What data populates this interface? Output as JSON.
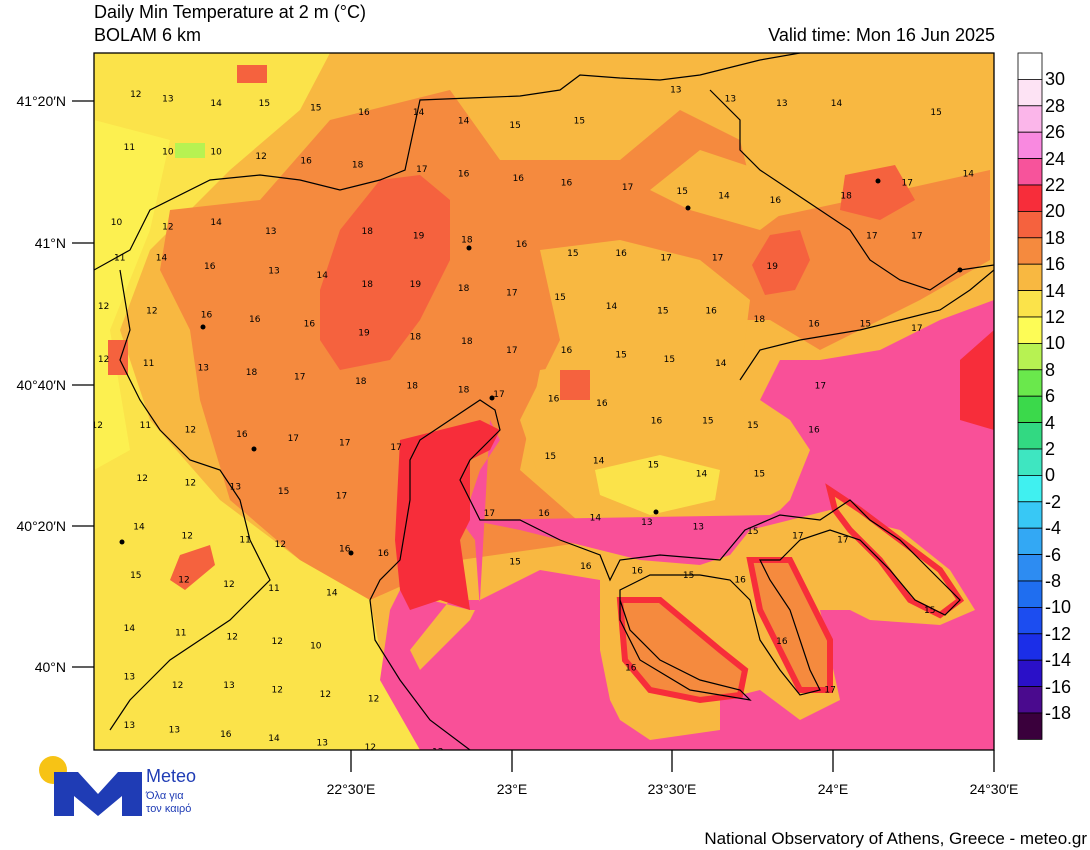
{
  "header": {
    "title": "Daily Min Temperature at 2 m (°C)",
    "model": "BOLAM 6 km",
    "valid_time": "Valid time: Mon 16 Jun 2025"
  },
  "footer": {
    "credit": "National Observatory of Athens, Greece - meteo.gr"
  },
  "logo": {
    "wordmark": "Meteo",
    "tagline_1": "Όλα για",
    "tagline_2": "τον καιρό"
  },
  "axes": {
    "lat_ticks": [
      "41°20′N",
      "41°N",
      "40°40′N",
      "40°20′N",
      "40°N"
    ],
    "lon_ticks": [
      "22°30′E",
      "23°E",
      "23°30′E",
      "24°E",
      "24°30′E"
    ]
  },
  "legend": {
    "levels": [
      {
        "label": "30",
        "color": "#ffffff"
      },
      {
        "label": "28",
        "color": "#fde3f4"
      },
      {
        "label": "26",
        "color": "#fbb6ea"
      },
      {
        "label": "24",
        "color": "#f989e0"
      },
      {
        "label": "22",
        "color": "#f7539b"
      },
      {
        "label": "20",
        "color": "#f72d3a"
      },
      {
        "label": "18",
        "color": "#f5623e"
      },
      {
        "label": "16",
        "color": "#f58a3e"
      },
      {
        "label": "14",
        "color": "#f8b841"
      },
      {
        "label": "12",
        "color": "#fbe34a"
      },
      {
        "label": "10",
        "color": "#fdfc56"
      },
      {
        "label": "8",
        "color": "#b7f252"
      },
      {
        "label": "6",
        "color": "#6ae84c"
      },
      {
        "label": "4",
        "color": "#3bd94b"
      },
      {
        "label": "2",
        "color": "#32d982"
      },
      {
        "label": "0",
        "color": "#3ee6c1"
      },
      {
        "label": "-2",
        "color": "#40f0f0"
      },
      {
        "label": "-4",
        "color": "#38c8f5"
      },
      {
        "label": "-6",
        "color": "#33a8f4"
      },
      {
        "label": "-8",
        "color": "#2d8cf2"
      },
      {
        "label": "-10",
        "color": "#1f6ef0"
      },
      {
        "label": "-12",
        "color": "#1c4df0"
      },
      {
        "label": "-14",
        "color": "#1b2ee8"
      },
      {
        "label": "-16",
        "color": "#2a10c8"
      },
      {
        "label": "-18",
        "color": "#4a0a8e"
      },
      {
        "label": "",
        "color": "#3a003c"
      }
    ]
  },
  "chart_data": {
    "type": "heatmap",
    "title": "Daily Min Temperature at 2 m (°C)",
    "lon_range": [
      21.7,
      24.5
    ],
    "lat_range": [
      39.87,
      41.45
    ],
    "grid_values": [
      {
        "lon": 21.83,
        "lat": 41.35,
        "v": 12
      },
      {
        "lon": 21.93,
        "lat": 41.34,
        "v": 13
      },
      {
        "lon": 22.08,
        "lat": 41.33,
        "v": 14
      },
      {
        "lon": 22.23,
        "lat": 41.33,
        "v": 15
      },
      {
        "lon": 22.39,
        "lat": 41.32,
        "v": 15
      },
      {
        "lon": 22.54,
        "lat": 41.31,
        "v": 16
      },
      {
        "lon": 22.71,
        "lat": 41.31,
        "v": 14
      },
      {
        "lon": 22.85,
        "lat": 41.29,
        "v": 14
      },
      {
        "lon": 23.01,
        "lat": 41.28,
        "v": 15
      },
      {
        "lon": 23.21,
        "lat": 41.29,
        "v": 15
      },
      {
        "lon": 23.51,
        "lat": 41.36,
        "v": 13
      },
      {
        "lon": 23.68,
        "lat": 41.34,
        "v": 13
      },
      {
        "lon": 23.84,
        "lat": 41.33,
        "v": 13
      },
      {
        "lon": 24.01,
        "lat": 41.33,
        "v": 14
      },
      {
        "lon": 24.32,
        "lat": 41.31,
        "v": 15
      },
      {
        "lon": 21.81,
        "lat": 41.23,
        "v": 11
      },
      {
        "lon": 21.93,
        "lat": 41.22,
        "v": 10
      },
      {
        "lon": 22.08,
        "lat": 41.22,
        "v": 10
      },
      {
        "lon": 22.22,
        "lat": 41.21,
        "v": 12
      },
      {
        "lon": 22.36,
        "lat": 41.2,
        "v": 16
      },
      {
        "lon": 22.52,
        "lat": 41.19,
        "v": 18
      },
      {
        "lon": 22.72,
        "lat": 41.18,
        "v": 17
      },
      {
        "lon": 22.85,
        "lat": 41.17,
        "v": 16
      },
      {
        "lon": 23.02,
        "lat": 41.16,
        "v": 16
      },
      {
        "lon": 23.17,
        "lat": 41.15,
        "v": 16
      },
      {
        "lon": 23.36,
        "lat": 41.14,
        "v": 17
      },
      {
        "lon": 23.53,
        "lat": 41.13,
        "v": 15
      },
      {
        "lon": 23.66,
        "lat": 41.12,
        "v": 14
      },
      {
        "lon": 23.82,
        "lat": 41.11,
        "v": 16
      },
      {
        "lon": 24.04,
        "lat": 41.12,
        "v": 18
      },
      {
        "lon": 24.23,
        "lat": 41.15,
        "v": 17
      },
      {
        "lon": 24.42,
        "lat": 41.17,
        "v": 14
      },
      {
        "lon": 21.77,
        "lat": 41.06,
        "v": 10
      },
      {
        "lon": 21.93,
        "lat": 41.05,
        "v": 12
      },
      {
        "lon": 22.08,
        "lat": 41.06,
        "v": 14
      },
      {
        "lon": 22.25,
        "lat": 41.04,
        "v": 13
      },
      {
        "lon": 22.55,
        "lat": 41.04,
        "v": 18
      },
      {
        "lon": 22.71,
        "lat": 41.03,
        "v": 19
      },
      {
        "lon": 22.86,
        "lat": 41.02,
        "v": 18
      },
      {
        "lon": 23.03,
        "lat": 41.01,
        "v": 16
      },
      {
        "lon": 23.19,
        "lat": 40.99,
        "v": 15
      },
      {
        "lon": 23.34,
        "lat": 40.99,
        "v": 16
      },
      {
        "lon": 23.48,
        "lat": 40.98,
        "v": 17
      },
      {
        "lon": 23.64,
        "lat": 40.98,
        "v": 17
      },
      {
        "lon": 23.81,
        "lat": 40.96,
        "v": 19
      },
      {
        "lon": 24.12,
        "lat": 41.03,
        "v": 17
      },
      {
        "lon": 24.26,
        "lat": 41.03,
        "v": 17
      },
      {
        "lon": 21.78,
        "lat": 40.98,
        "v": 11
      },
      {
        "lon": 21.91,
        "lat": 40.98,
        "v": 14
      },
      {
        "lon": 22.06,
        "lat": 40.96,
        "v": 16
      },
      {
        "lon": 22.26,
        "lat": 40.95,
        "v": 13
      },
      {
        "lon": 22.41,
        "lat": 40.94,
        "v": 14
      },
      {
        "lon": 22.55,
        "lat": 40.92,
        "v": 18
      },
      {
        "lon": 22.7,
        "lat": 40.92,
        "v": 19
      },
      {
        "lon": 22.85,
        "lat": 40.91,
        "v": 18
      },
      {
        "lon": 23.0,
        "lat": 40.9,
        "v": 17
      },
      {
        "lon": 23.15,
        "lat": 40.89,
        "v": 15
      },
      {
        "lon": 23.31,
        "lat": 40.87,
        "v": 14
      },
      {
        "lon": 23.47,
        "lat": 40.86,
        "v": 15
      },
      {
        "lon": 23.62,
        "lat": 40.86,
        "v": 16
      },
      {
        "lon": 23.77,
        "lat": 40.84,
        "v": 18
      },
      {
        "lon": 23.94,
        "lat": 40.83,
        "v": 16
      },
      {
        "lon": 24.1,
        "lat": 40.83,
        "v": 15
      },
      {
        "lon": 24.26,
        "lat": 40.82,
        "v": 17
      },
      {
        "lon": 21.73,
        "lat": 40.87,
        "v": 12
      },
      {
        "lon": 21.88,
        "lat": 40.86,
        "v": 12
      },
      {
        "lon": 22.05,
        "lat": 40.85,
        "v": 16
      },
      {
        "lon": 22.2,
        "lat": 40.84,
        "v": 16
      },
      {
        "lon": 22.37,
        "lat": 40.83,
        "v": 16
      },
      {
        "lon": 22.54,
        "lat": 40.81,
        "v": 19
      },
      {
        "lon": 22.7,
        "lat": 40.8,
        "v": 18
      },
      {
        "lon": 22.86,
        "lat": 40.79,
        "v": 18
      },
      {
        "lon": 23.0,
        "lat": 40.77,
        "v": 17
      },
      {
        "lon": 23.17,
        "lat": 40.77,
        "v": 16
      },
      {
        "lon": 23.34,
        "lat": 40.76,
        "v": 15
      },
      {
        "lon": 23.49,
        "lat": 40.75,
        "v": 15
      },
      {
        "lon": 23.65,
        "lat": 40.74,
        "v": 14
      },
      {
        "lon": 23.96,
        "lat": 40.69,
        "v": 17
      },
      {
        "lon": 21.73,
        "lat": 40.75,
        "v": 12
      },
      {
        "lon": 21.87,
        "lat": 40.74,
        "v": 11
      },
      {
        "lon": 22.04,
        "lat": 40.73,
        "v": 13
      },
      {
        "lon": 22.19,
        "lat": 40.72,
        "v": 18
      },
      {
        "lon": 22.34,
        "lat": 40.71,
        "v": 17
      },
      {
        "lon": 22.53,
        "lat": 40.7,
        "v": 18
      },
      {
        "lon": 22.69,
        "lat": 40.69,
        "v": 18
      },
      {
        "lon": 22.85,
        "lat": 40.68,
        "v": 18
      },
      {
        "lon": 22.96,
        "lat": 40.67,
        "v": 17
      },
      {
        "lon": 23.13,
        "lat": 40.66,
        "v": 16
      },
      {
        "lon": 23.28,
        "lat": 40.65,
        "v": 16
      },
      {
        "lon": 21.71,
        "lat": 40.6,
        "v": 12
      },
      {
        "lon": 21.86,
        "lat": 40.6,
        "v": 11
      },
      {
        "lon": 22.0,
        "lat": 40.59,
        "v": 12
      },
      {
        "lon": 22.16,
        "lat": 40.58,
        "v": 16
      },
      {
        "lon": 22.32,
        "lat": 40.57,
        "v": 17
      },
      {
        "lon": 22.48,
        "lat": 40.56,
        "v": 17
      },
      {
        "lon": 22.64,
        "lat": 40.55,
        "v": 17
      },
      {
        "lon": 23.45,
        "lat": 40.61,
        "v": 16
      },
      {
        "lon": 23.61,
        "lat": 40.61,
        "v": 15
      },
      {
        "lon": 23.75,
        "lat": 40.6,
        "v": 15
      },
      {
        "lon": 23.94,
        "lat": 40.59,
        "v": 16
      },
      {
        "lon": 21.85,
        "lat": 40.48,
        "v": 12
      },
      {
        "lon": 22.0,
        "lat": 40.47,
        "v": 12
      },
      {
        "lon": 22.14,
        "lat": 40.46,
        "v": 13
      },
      {
        "lon": 22.29,
        "lat": 40.45,
        "v": 15
      },
      {
        "lon": 22.47,
        "lat": 40.44,
        "v": 17
      },
      {
        "lon": 23.12,
        "lat": 40.53,
        "v": 15
      },
      {
        "lon": 23.27,
        "lat": 40.52,
        "v": 14
      },
      {
        "lon": 23.44,
        "lat": 40.51,
        "v": 15
      },
      {
        "lon": 23.59,
        "lat": 40.49,
        "v": 14
      },
      {
        "lon": 23.77,
        "lat": 40.49,
        "v": 15
      },
      {
        "lon": 21.84,
        "lat": 40.37,
        "v": 14
      },
      {
        "lon": 21.99,
        "lat": 40.35,
        "v": 12
      },
      {
        "lon": 22.17,
        "lat": 40.34,
        "v": 11
      },
      {
        "lon": 22.28,
        "lat": 40.33,
        "v": 12
      },
      {
        "lon": 22.48,
        "lat": 40.32,
        "v": 16
      },
      {
        "lon": 22.6,
        "lat": 40.31,
        "v": 16
      },
      {
        "lon": 22.93,
        "lat": 40.4,
        "v": 17
      },
      {
        "lon": 23.1,
        "lat": 40.4,
        "v": 16
      },
      {
        "lon": 23.26,
        "lat": 40.39,
        "v": 14
      },
      {
        "lon": 23.42,
        "lat": 40.38,
        "v": 13
      },
      {
        "lon": 23.58,
        "lat": 40.37,
        "v": 13
      },
      {
        "lon": 23.75,
        "lat": 40.36,
        "v": 15
      },
      {
        "lon": 23.89,
        "lat": 40.35,
        "v": 17
      },
      {
        "lon": 24.03,
        "lat": 40.34,
        "v": 17
      },
      {
        "lon": 21.83,
        "lat": 40.26,
        "v": 15
      },
      {
        "lon": 21.98,
        "lat": 40.25,
        "v": 12
      },
      {
        "lon": 22.12,
        "lat": 40.24,
        "v": 12
      },
      {
        "lon": 22.26,
        "lat": 40.23,
        "v": 11
      },
      {
        "lon": 22.44,
        "lat": 40.22,
        "v": 14
      },
      {
        "lon": 23.01,
        "lat": 40.29,
        "v": 15
      },
      {
        "lon": 23.23,
        "lat": 40.28,
        "v": 16
      },
      {
        "lon": 23.39,
        "lat": 40.27,
        "v": 16
      },
      {
        "lon": 23.55,
        "lat": 40.26,
        "v": 15
      },
      {
        "lon": 23.71,
        "lat": 40.25,
        "v": 16
      },
      {
        "lon": 24.3,
        "lat": 40.18,
        "v": 15
      },
      {
        "lon": 21.81,
        "lat": 40.14,
        "v": 14
      },
      {
        "lon": 21.97,
        "lat": 40.13,
        "v": 11
      },
      {
        "lon": 22.13,
        "lat": 40.12,
        "v": 12
      },
      {
        "lon": 22.27,
        "lat": 40.11,
        "v": 12
      },
      {
        "lon": 22.39,
        "lat": 40.1,
        "v": 10
      },
      {
        "lon": 23.84,
        "lat": 40.11,
        "v": 16
      },
      {
        "lon": 21.81,
        "lat": 40.03,
        "v": 13
      },
      {
        "lon": 21.96,
        "lat": 40.01,
        "v": 12
      },
      {
        "lon": 22.12,
        "lat": 40.01,
        "v": 13
      },
      {
        "lon": 22.27,
        "lat": 40.0,
        "v": 12
      },
      {
        "lon": 22.42,
        "lat": 39.99,
        "v": 12
      },
      {
        "lon": 22.57,
        "lat": 39.98,
        "v": 12
      },
      {
        "lon": 23.37,
        "lat": 40.05,
        "v": 16
      },
      {
        "lon": 23.99,
        "lat": 40.0,
        "v": 17
      },
      {
        "lon": 21.81,
        "lat": 39.92,
        "v": 13
      },
      {
        "lon": 21.95,
        "lat": 39.91,
        "v": 13
      },
      {
        "lon": 22.11,
        "lat": 39.9,
        "v": 16
      },
      {
        "lon": 22.26,
        "lat": 39.89,
        "v": 14
      },
      {
        "lon": 22.41,
        "lat": 39.88,
        "v": 13
      },
      {
        "lon": 22.56,
        "lat": 39.87,
        "v": 12
      },
      {
        "lon": 22.77,
        "lat": 39.86,
        "v": 12
      }
    ]
  }
}
